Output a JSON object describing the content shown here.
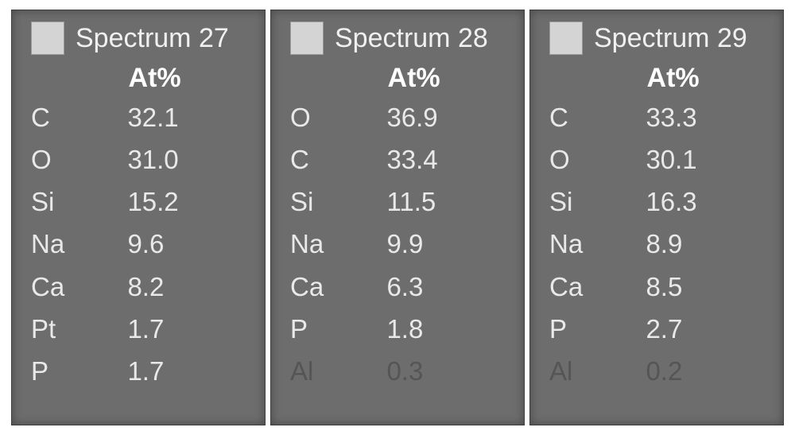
{
  "colors": {
    "page_bg": "#ffffff",
    "panel_bg": "#6d6d6d",
    "panel_border": "#3f3f3f",
    "swatch_bg": "#d4d4d4",
    "swatch_border": "#9a9a9a",
    "text": "#e9e9e9",
    "header_text": "#ffffff",
    "dim_text": "#555555"
  },
  "typography": {
    "font_family": "Segoe UI",
    "title_fontsize": 34,
    "header_fontsize": 34,
    "row_fontsize": 33,
    "header_weight": 700
  },
  "column_header": "At%",
  "panels": [
    {
      "title": "Spectrum 27",
      "rows": [
        {
          "element": "C",
          "value": "32.1",
          "dim": false
        },
        {
          "element": "O",
          "value": "31.0",
          "dim": false
        },
        {
          "element": "Si",
          "value": "15.2",
          "dim": false
        },
        {
          "element": "Na",
          "value": "9.6",
          "dim": false
        },
        {
          "element": "Ca",
          "value": "8.2",
          "dim": false
        },
        {
          "element": "Pt",
          "value": "1.7",
          "dim": false
        },
        {
          "element": "P",
          "value": "1.7",
          "dim": false
        }
      ]
    },
    {
      "title": "Spectrum 28",
      "rows": [
        {
          "element": "O",
          "value": "36.9",
          "dim": false
        },
        {
          "element": "C",
          "value": "33.4",
          "dim": false
        },
        {
          "element": "Si",
          "value": "11.5",
          "dim": false
        },
        {
          "element": "Na",
          "value": "9.9",
          "dim": false
        },
        {
          "element": "Ca",
          "value": "6.3",
          "dim": false
        },
        {
          "element": "P",
          "value": "1.8",
          "dim": false
        },
        {
          "element": "Al",
          "value": "0.3",
          "dim": true
        }
      ]
    },
    {
      "title": "Spectrum 29",
      "rows": [
        {
          "element": "C",
          "value": "33.3",
          "dim": false
        },
        {
          "element": "O",
          "value": "30.1",
          "dim": false
        },
        {
          "element": "Si",
          "value": "16.3",
          "dim": false
        },
        {
          "element": "Na",
          "value": "8.9",
          "dim": false
        },
        {
          "element": "Ca",
          "value": "8.5",
          "dim": false
        },
        {
          "element": "P",
          "value": "2.7",
          "dim": false
        },
        {
          "element": "Al",
          "value": "0.2",
          "dim": true
        }
      ]
    }
  ]
}
